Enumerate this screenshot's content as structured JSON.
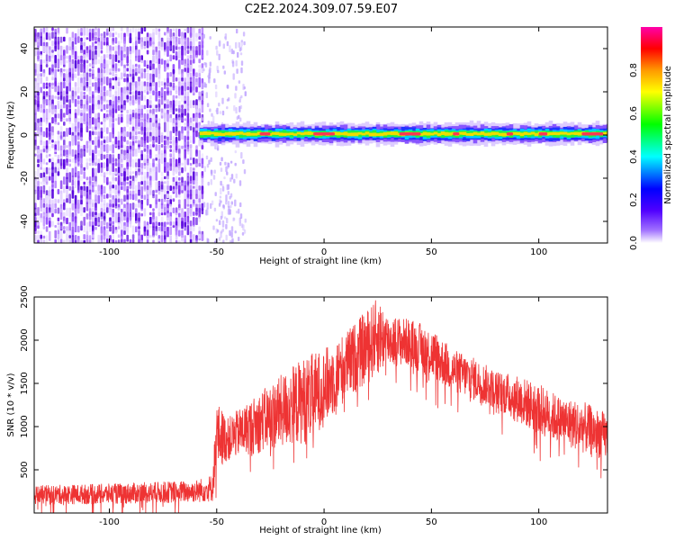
{
  "title": "C2E2.2024.309.07.59.E07",
  "chart_data": [
    {
      "type": "heatmap",
      "xlabel": "Height of straight line (km)",
      "ylabel": "Frequency (Hz)",
      "xlim": [
        -135,
        132
      ],
      "ylim": [
        -50,
        50
      ],
      "xticks": [
        -100,
        -50,
        0,
        50,
        100
      ],
      "xtick_labels": [
        "-100",
        "-50",
        "0",
        "50",
        "100"
      ],
      "yticks": [
        -40,
        -20,
        0,
        20,
        40
      ],
      "ytick_labels": [
        "-40",
        "-20",
        "0",
        "20",
        "40"
      ],
      "colorbar": {
        "label": "Normalized spectral amplitude",
        "range": [
          0,
          1
        ],
        "ticks": [
          0.0,
          0.2,
          0.4,
          0.6,
          0.8
        ],
        "tick_labels": [
          "0.0",
          "0.2",
          "0.4",
          "0.6",
          "0.8"
        ],
        "colormap": [
          "#ffffff",
          "#7a00ff",
          "#0000ff",
          "#00ffff",
          "#00ff00",
          "#ffff00",
          "#ff9900",
          "#ff0000",
          "#ff00aa"
        ]
      },
      "noise_region_x": [
        -135,
        -57
      ],
      "signal_band": {
        "x": [
          -58,
          132
        ],
        "center_freq_hz": 0.5,
        "half_width_hz": 2
      }
    },
    {
      "type": "line",
      "xlabel": "Height of straight line (km)",
      "ylabel": "SNR (10 * v/v)",
      "xlim": [
        -135,
        132
      ],
      "ylim": [
        0,
        2500
      ],
      "xticks": [
        -100,
        -50,
        0,
        50,
        100
      ],
      "xtick_labels": [
        "-100",
        "-50",
        "0",
        "50",
        "100"
      ],
      "yticks": [
        500,
        1000,
        1500,
        2000,
        2500
      ],
      "ytick_labels": [
        "500",
        "1000",
        "1500",
        "2000",
        "2500"
      ],
      "series_color": "#ee3333",
      "envelope": {
        "x": [
          -135,
          -100,
          -80,
          -60,
          -52,
          -50,
          -45,
          -40,
          -30,
          -20,
          -10,
          0,
          10,
          20,
          25,
          30,
          40,
          50,
          60,
          70,
          80,
          90,
          100,
          110,
          120,
          132
        ],
        "low": [
          100,
          100,
          110,
          120,
          130,
          500,
          600,
          650,
          700,
          750,
          800,
          1000,
          1300,
          1500,
          1600,
          1700,
          1700,
          1550,
          1400,
          1300,
          1200,
          1050,
          900,
          800,
          700,
          600
        ],
        "high": [
          320,
          340,
          360,
          380,
          450,
          1300,
          1100,
          1200,
          1400,
          1600,
          1800,
          1900,
          2100,
          2350,
          2500,
          2300,
          2250,
          2150,
          1900,
          1800,
          1650,
          1600,
          1500,
          1350,
          1300,
          1150
        ]
      }
    }
  ]
}
